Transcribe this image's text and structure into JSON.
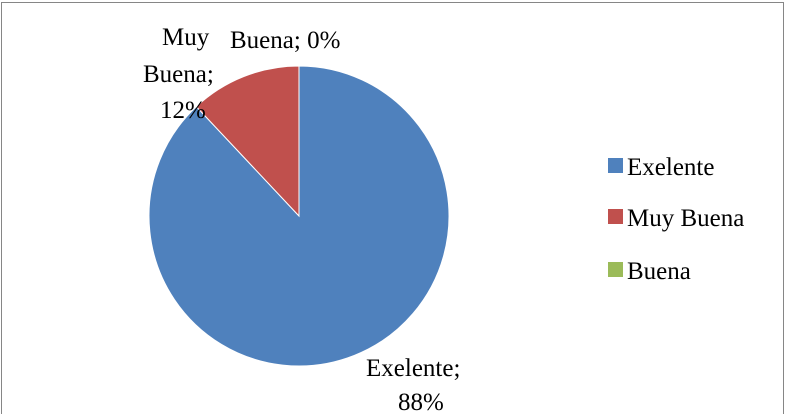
{
  "chart_data": {
    "type": "pie",
    "title": "",
    "categories": [
      "Exelente",
      "Muy Buena",
      "Buena"
    ],
    "values": [
      88,
      12,
      0
    ],
    "unit": "%",
    "colors": [
      "#4F81BD",
      "#C0504D",
      "#9BBB59"
    ],
    "data_labels": [
      {
        "line1": "Exelente;",
        "line2": "88%"
      },
      {
        "line1": "Muy",
        "line2": "Buena;",
        "line3": "12%"
      },
      {
        "line1": "Buena; 0%"
      }
    ],
    "legend": {
      "placement": "right",
      "entries": [
        "Exelente",
        "Muy Buena",
        "Buena"
      ]
    },
    "start_angle": "12 o'clock",
    "direction": "clockwise"
  }
}
